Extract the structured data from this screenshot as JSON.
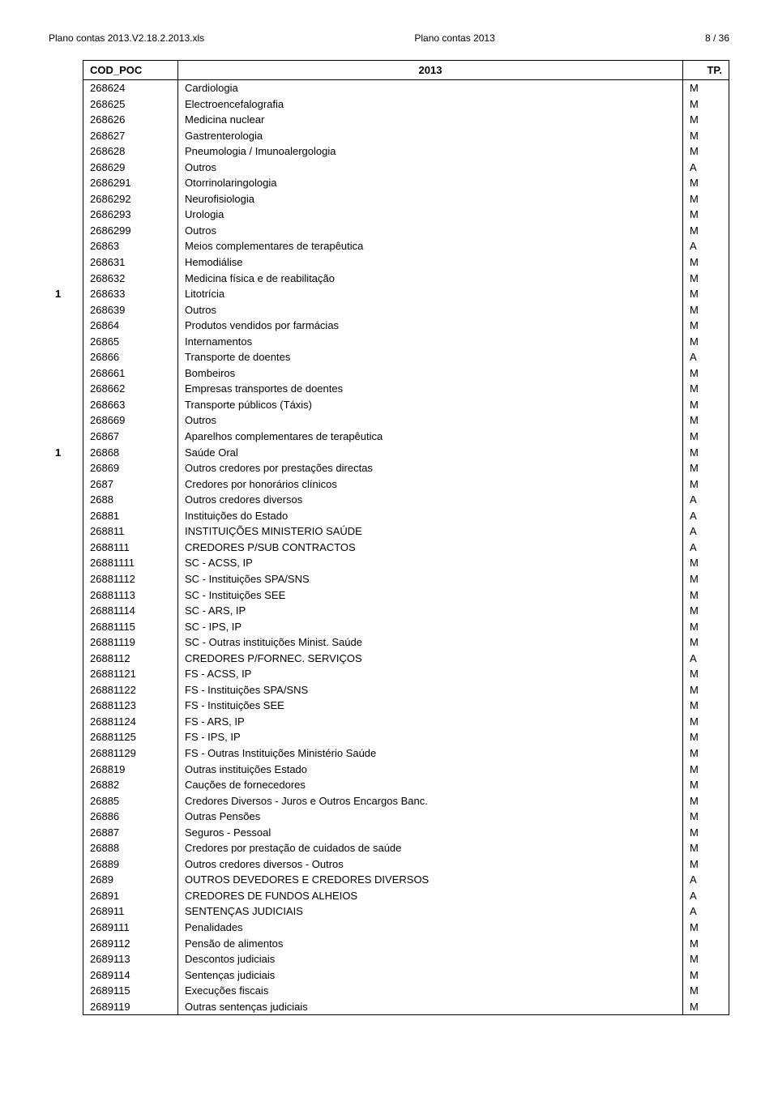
{
  "header": {
    "left": "Plano contas 2013.V2.18.2.2013.xls",
    "center": "Plano contas 2013",
    "right": "8 / 36"
  },
  "columns": {
    "code": "COD_POC",
    "desc": "2013",
    "tp": "TP."
  },
  "rows": [
    {
      "idx": "",
      "code": "268624",
      "desc": "Cardiologia",
      "tp": "M"
    },
    {
      "idx": "",
      "code": "268625",
      "desc": "Electroencefalografia",
      "tp": "M"
    },
    {
      "idx": "",
      "code": "268626",
      "desc": "Medicina nuclear",
      "tp": "M"
    },
    {
      "idx": "",
      "code": "268627",
      "desc": "Gastrenterologia",
      "tp": "M"
    },
    {
      "idx": "",
      "code": "268628",
      "desc": "Pneumologia / Imunoalergologia",
      "tp": "M"
    },
    {
      "idx": "",
      "code": "268629",
      "desc": "Outros",
      "tp": "A"
    },
    {
      "idx": "",
      "code": "2686291",
      "desc": "Otorrinolaringologia",
      "tp": "M"
    },
    {
      "idx": "",
      "code": "2686292",
      "desc": "Neurofisiologia",
      "tp": "M"
    },
    {
      "idx": "",
      "code": "2686293",
      "desc": "Urologia",
      "tp": "M"
    },
    {
      "idx": "",
      "code": "2686299",
      "desc": "Outros",
      "tp": "M"
    },
    {
      "idx": "",
      "code": "26863",
      "desc": "Meios complementares de terapêutica",
      "tp": "A"
    },
    {
      "idx": "",
      "code": "268631",
      "desc": "Hemodiálise",
      "tp": "M"
    },
    {
      "idx": "",
      "code": "268632",
      "desc": "Medicina física e de reabilitação",
      "tp": "M"
    },
    {
      "idx": "1",
      "code": "268633",
      "desc": "Litotrícia",
      "tp": "M"
    },
    {
      "idx": "",
      "code": "268639",
      "desc": "Outros",
      "tp": "M"
    },
    {
      "idx": "",
      "code": "26864",
      "desc": "Produtos vendidos por farmácias",
      "tp": "M"
    },
    {
      "idx": "",
      "code": "26865",
      "desc": "Internamentos",
      "tp": "M"
    },
    {
      "idx": "",
      "code": "26866",
      "desc": "Transporte de doentes",
      "tp": "A"
    },
    {
      "idx": "",
      "code": "268661",
      "desc": "Bombeiros",
      "tp": "M"
    },
    {
      "idx": "",
      "code": "268662",
      "desc": "Empresas transportes de doentes",
      "tp": "M"
    },
    {
      "idx": "",
      "code": "268663",
      "desc": "Transporte públicos (Táxis)",
      "tp": "M"
    },
    {
      "idx": "",
      "code": "268669",
      "desc": "Outros",
      "tp": "M"
    },
    {
      "idx": "",
      "code": "26867",
      "desc": "Aparelhos complementares de terapêutica",
      "tp": "M"
    },
    {
      "idx": "1",
      "code": "26868",
      "desc": "Saúde Oral",
      "tp": "M"
    },
    {
      "idx": "",
      "code": "26869",
      "desc": "Outros credores por prestações directas",
      "tp": "M"
    },
    {
      "idx": "",
      "code": "2687",
      "desc": "Credores por honorários clínicos",
      "tp": "M"
    },
    {
      "idx": "",
      "code": "2688",
      "desc": "Outros credores diversos",
      "tp": "A"
    },
    {
      "idx": "",
      "code": "26881",
      "desc": "Instituições do Estado",
      "tp": "A"
    },
    {
      "idx": "",
      "code": "268811",
      "desc": "INSTITUIÇÕES MINISTERIO SAÚDE",
      "tp": "A"
    },
    {
      "idx": "",
      "code": "2688111",
      "desc": "CREDORES P/SUB CONTRACTOS",
      "tp": "A"
    },
    {
      "idx": "",
      "code": "26881111",
      "desc": "SC - ACSS, IP",
      "tp": "M"
    },
    {
      "idx": "",
      "code": "26881112",
      "desc": "SC - Instituições SPA/SNS",
      "tp": "M"
    },
    {
      "idx": "",
      "code": "26881113",
      "desc": "SC - Instituições SEE",
      "tp": "M"
    },
    {
      "idx": "",
      "code": "26881114",
      "desc": "SC - ARS, IP",
      "tp": "M"
    },
    {
      "idx": "",
      "code": "26881115",
      "desc": "SC - IPS, IP",
      "tp": "M"
    },
    {
      "idx": "",
      "code": "26881119",
      "desc": "SC - Outras instituições Minist. Saúde",
      "tp": "M"
    },
    {
      "idx": "",
      "code": "2688112",
      "desc": "CREDORES P/FORNEC. SERVIÇOS",
      "tp": "A"
    },
    {
      "idx": "",
      "code": "26881121",
      "desc": "FS - ACSS, IP",
      "tp": "M"
    },
    {
      "idx": "",
      "code": "26881122",
      "desc": "FS - Instituições SPA/SNS",
      "tp": "M"
    },
    {
      "idx": "",
      "code": "26881123",
      "desc": "FS - Instituições SEE",
      "tp": "M"
    },
    {
      "idx": "",
      "code": "26881124",
      "desc": "FS - ARS, IP",
      "tp": "M"
    },
    {
      "idx": "",
      "code": "26881125",
      "desc": "FS - IPS, IP",
      "tp": "M"
    },
    {
      "idx": "",
      "code": "26881129",
      "desc": "FS - Outras Instituições Ministério Saúde",
      "tp": "M"
    },
    {
      "idx": "",
      "code": "268819",
      "desc": "Outras instituições Estado",
      "tp": "M"
    },
    {
      "idx": "",
      "code": "26882",
      "desc": "Cauções de fornecedores",
      "tp": "M"
    },
    {
      "idx": "",
      "code": "26885",
      "desc": "Credores Diversos - Juros e Outros Encargos Banc.",
      "tp": "M"
    },
    {
      "idx": "",
      "code": "26886",
      "desc": "Outras Pensões",
      "tp": "M"
    },
    {
      "idx": "",
      "code": "26887",
      "desc": " Seguros - Pessoal",
      "tp": "M"
    },
    {
      "idx": "",
      "code": "26888",
      "desc": "Credores por prestação de cuidados de saúde",
      "tp": "M"
    },
    {
      "idx": "",
      "code": "26889",
      "desc": "Outros credores diversos - Outros",
      "tp": "M"
    },
    {
      "idx": "",
      "code": "2689",
      "desc": "OUTROS DEVEDORES E CREDORES DIVERSOS",
      "tp": "A"
    },
    {
      "idx": "",
      "code": "26891",
      "desc": "CREDORES DE FUNDOS ALHEIOS",
      "tp": "A"
    },
    {
      "idx": "",
      "code": "268911",
      "desc": "SENTENÇAS JUDICIAIS",
      "tp": "A"
    },
    {
      "idx": "",
      "code": "2689111",
      "desc": "Penalidades",
      "tp": "M"
    },
    {
      "idx": "",
      "code": "2689112",
      "desc": "Pensão de alimentos",
      "tp": "M"
    },
    {
      "idx": "",
      "code": "2689113",
      "desc": "Descontos judiciais",
      "tp": "M"
    },
    {
      "idx": "",
      "code": "2689114",
      "desc": "Sentenças judiciais",
      "tp": "M"
    },
    {
      "idx": "",
      "code": "2689115",
      "desc": "Execuções fiscais",
      "tp": "M"
    },
    {
      "idx": "",
      "code": "2689119",
      "desc": "Outras sentenças judiciais",
      "tp": "M"
    }
  ]
}
